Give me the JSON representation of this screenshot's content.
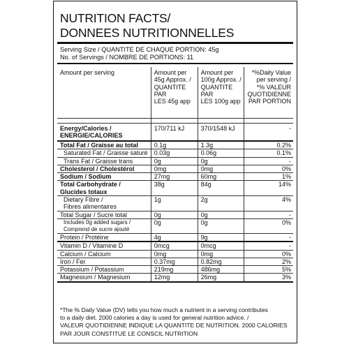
{
  "title": {
    "line1": "NUTRITION FACTS/",
    "line2": "DONNEES NUTRITIONNELLES"
  },
  "serving": {
    "size": "Serving Size / QUANTITE DE CHAQUE PORTION: 45g",
    "count": "No. of Servings / NOMBRE DE PORTIONS: 11"
  },
  "headers": {
    "c1": "Amount per serving",
    "c2": [
      "Amount per",
      "45g Approx. /",
      "QUANTITE PAR",
      "LES 45g  app"
    ],
    "c3": [
      "Amount per",
      "100g Approx. /",
      "QUANTITE PAR",
      "LES 100g app"
    ],
    "c4": [
      "*%Daily Value",
      "per serving /",
      "*% VALEUR",
      "QUOTIDIENNE",
      "PAR PORTION"
    ]
  },
  "rows": [
    {
      "label": [
        "Energy/Calories /",
        "ENERGIE/CALORIES"
      ],
      "serving": "170/711 kJ",
      "per100": "370/1548 kJ",
      "dv": "-"
    },
    {
      "label": [
        "Total Fat / Graisse au total"
      ],
      "serving": "0.1g",
      "per100": "1.3g",
      "dv": "0.2%"
    },
    {
      "label": [
        "Saturated Fat / Graisse saturé"
      ],
      "serving": "0.03g",
      "per100": "0.06g",
      "dv": "0.1%"
    },
    {
      "label": [
        "Trans Fat / Graisse trans"
      ],
      "serving": "0g",
      "per100": "0g",
      "dv": "-"
    },
    {
      "label": [
        "Cholesterol / Cholestérol"
      ],
      "serving": "0mg",
      "per100": "0mg",
      "dv": "0%"
    },
    {
      "label": [
        "Sodium / Sodium"
      ],
      "serving": "27mg",
      "per100": "60mg",
      "dv": "1%"
    },
    {
      "label": [
        "Total Carbohydrate /",
        "Glucides totaux"
      ],
      "serving": "38g",
      "per100": "84g",
      "dv": "14%"
    },
    {
      "label": [
        "Dietary Fibre /",
        "Fibres alimentaires"
      ],
      "serving": "1g",
      "per100": "2g",
      "dv": "4%"
    },
    {
      "label": [
        "Total Sugar / Sucre total"
      ],
      "serving": "0g",
      "per100": "0g",
      "dv": "-"
    },
    {
      "label": [
        "Includes 0g added sugars /",
        "Comprend de sucre ajouté"
      ],
      "serving": "0g",
      "per100": "0g",
      "dv": "0%"
    },
    {
      "label": [
        "Protein / Protéine"
      ],
      "serving": "4g",
      "per100": "9g",
      "dv": "-"
    },
    {
      "label": [
        "Vitamin D / Vitamine D"
      ],
      "serving": "0mcg",
      "per100": "0mcg",
      "dv": "-"
    },
    {
      "label": [
        "Calcium / Calcium"
      ],
      "serving": "0mg",
      "per100": "0mg",
      "dv": "0%"
    },
    {
      "label": [
        "Iron / Fer"
      ],
      "serving": "0.37mg",
      "per100": "0.82mg",
      "dv": "2%"
    },
    {
      "label": [
        "Potassium / Potassium"
      ],
      "serving": "219mg",
      "per100": "486mg",
      "dv": "5%"
    },
    {
      "label": [
        "Magnesium / Magnesium"
      ],
      "serving": "12mg",
      "per100": "26mg",
      "dv": "3%"
    }
  ],
  "footnote": [
    "*The % Daily Value (DV) tells you how much a nutrient in a serving contributes",
    "to a daily diet. 2000 calories a day is used for general nutrition advice. /",
    "VALEUR QUOTIDIENNE INDIQUE LA QUANTITE DE NUTRITION. 2000 CALORIES",
    "PAR JOUR CONSTITUE LE CONSCIL NUTRITION"
  ]
}
